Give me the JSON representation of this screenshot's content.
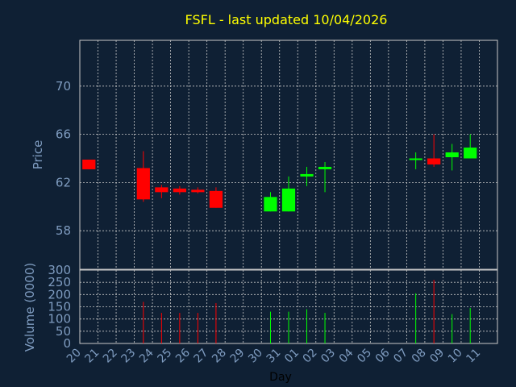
{
  "chart_data": {
    "type": "candlestick",
    "title": "FSFL - last updated 10/04/2026",
    "ylabel": "Price",
    "volume_ylabel": "Volume (0000)",
    "xlabel": "Day",
    "colors": {
      "background": "#0f2034",
      "up": "#00ff00",
      "down": "#ff0000",
      "title": "#ffff00",
      "axis_text": "#7f9cc0",
      "grid": "#c8c8c8"
    },
    "price_ylim": [
      54.8,
      73.8
    ],
    "price_yticks": [
      58,
      62,
      66,
      70
    ],
    "volume_ylim": [
      0,
      300
    ],
    "volume_yticks": [
      0,
      50,
      100,
      150,
      200,
      250,
      300
    ],
    "x_ticks": [
      "20",
      "21",
      "22",
      "23",
      "24",
      "25",
      "26",
      "27",
      "28",
      "29",
      "30",
      "31",
      "01",
      "02",
      "03",
      "04",
      "05",
      "06",
      "07",
      "08",
      "09",
      "10",
      "11"
    ],
    "candles": [
      {
        "x": "20",
        "open": 63.9,
        "close": 63.1,
        "high": 63.9,
        "low": 63.1,
        "volume": 0
      },
      {
        "x": "23",
        "open": 63.2,
        "close": 60.6,
        "high": 64.6,
        "low": 60.4,
        "volume": 170
      },
      {
        "x": "24",
        "open": 61.6,
        "close": 61.2,
        "high": 61.8,
        "low": 60.7,
        "volume": 125
      },
      {
        "x": "25",
        "open": 61.5,
        "close": 61.2,
        "high": 61.7,
        "low": 61.0,
        "volume": 125
      },
      {
        "x": "26",
        "open": 61.4,
        "close": 61.2,
        "high": 61.6,
        "low": 61.1,
        "volume": 125
      },
      {
        "x": "27",
        "open": 61.3,
        "close": 59.9,
        "high": 61.6,
        "low": 59.9,
        "volume": 165
      },
      {
        "x": "30",
        "open": 59.6,
        "close": 60.8,
        "high": 61.2,
        "low": 59.6,
        "volume": 130
      },
      {
        "x": "31",
        "open": 59.6,
        "close": 61.5,
        "high": 62.5,
        "low": 59.6,
        "volume": 130
      },
      {
        "x": "01",
        "open": 62.5,
        "close": 62.7,
        "high": 63.3,
        "low": 61.7,
        "volume": 140
      },
      {
        "x": "02",
        "open": 63.1,
        "close": 63.3,
        "high": 63.7,
        "low": 61.2,
        "volume": 125
      },
      {
        "x": "07",
        "open": 63.9,
        "close": 64.0,
        "high": 64.5,
        "low": 63.1,
        "volume": 205
      },
      {
        "x": "08",
        "open": 64.0,
        "close": 63.5,
        "high": 66.0,
        "low": 63.3,
        "volume": 260
      },
      {
        "x": "09",
        "open": 64.1,
        "close": 64.5,
        "high": 65.2,
        "low": 63.0,
        "volume": 120
      },
      {
        "x": "10",
        "open": 64.0,
        "close": 64.9,
        "high": 66.0,
        "low": 64.0,
        "volume": 145
      }
    ]
  }
}
